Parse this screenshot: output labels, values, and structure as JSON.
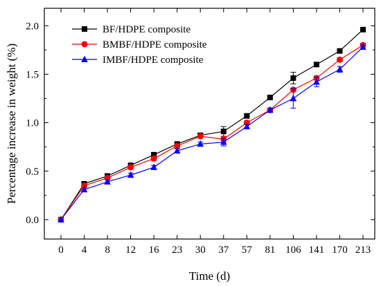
{
  "chart_data": {
    "type": "line",
    "xlabel": "Time (d)",
    "ylabel": "Percentage increase in weight (%)",
    "categories": [
      "0",
      "4",
      "8",
      "12",
      "16",
      "23",
      "30",
      "37",
      "57",
      "81",
      "106",
      "141",
      "170",
      "213"
    ],
    "yticks": [
      "0.0",
      "0.5",
      "1.0",
      "1.5",
      "2.0"
    ],
    "ylim": [
      -0.2,
      2.18
    ],
    "legend_position": "top-left",
    "grid": false,
    "series": [
      {
        "name": "BF/HDPE composite",
        "color": "#000000",
        "marker": "square",
        "values": [
          0.0,
          0.37,
          0.45,
          0.56,
          0.67,
          0.78,
          0.87,
          0.91,
          1.07,
          1.26,
          1.46,
          1.6,
          1.74,
          1.96
        ],
        "errors": [
          0.0,
          0.02,
          0.02,
          0.02,
          0.02,
          0.02,
          0.02,
          0.05,
          0.02,
          0.02,
          0.06,
          0.02,
          0.02,
          0.02
        ]
      },
      {
        "name": "BMBF/HDPE composite",
        "color": "#ff0000",
        "marker": "circle",
        "values": [
          0.0,
          0.35,
          0.43,
          0.54,
          0.63,
          0.76,
          0.86,
          0.83,
          1.0,
          1.13,
          1.34,
          1.46,
          1.65,
          1.8
        ],
        "errors": [
          0.0,
          0.02,
          0.02,
          0.02,
          0.02,
          0.02,
          0.02,
          0.03,
          0.02,
          0.02,
          0.02,
          0.02,
          0.02,
          0.02
        ]
      },
      {
        "name": "IMBF/HDPE composite",
        "color": "#0000ff",
        "marker": "triangle",
        "values": [
          0.0,
          0.31,
          0.39,
          0.46,
          0.54,
          0.71,
          0.78,
          0.8,
          0.96,
          1.13,
          1.25,
          1.42,
          1.55,
          1.78
        ],
        "errors": [
          0.0,
          0.02,
          0.02,
          0.02,
          0.02,
          0.02,
          0.02,
          0.04,
          0.02,
          0.02,
          0.1,
          0.05,
          0.03,
          0.02
        ]
      }
    ]
  }
}
